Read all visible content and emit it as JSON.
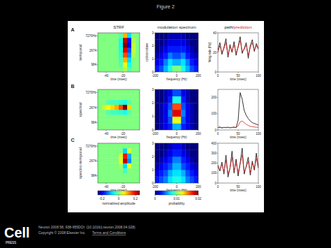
{
  "page": {
    "title": "Figure 2",
    "column_titles": [
      "STRF",
      "modulation spectrum"
    ],
    "legend_separator": "/",
    "rows": [
      {
        "letter": "A",
        "label": "temporal"
      },
      {
        "letter": "B",
        "label": "spectral"
      },
      {
        "letter": "C",
        "label": "spectro-temporal"
      }
    ],
    "logo": "Cell",
    "logo_sub": "PRESS",
    "citation": "Neuron 2008 58, 938-955DOI: (10.1016/j.neuron.2008.04.028)",
    "copyright": "Copyright © 2008 Elsevier Inc.",
    "link": "Terms and Conditions"
  },
  "chart_data": [
    {
      "type": "heatmap",
      "log": "y",
      "xlabel": "time (msec)",
      "x": [
        -47.5,
        -42.5,
        -37.5,
        -32.5,
        -27.5,
        -22.5,
        -17.5,
        -12.5,
        -7.5,
        -2.5
      ],
      "y": [
        711,
        997,
        1399,
        1963,
        2754,
        3864,
        5421,
        7606
      ],
      "xlim": [
        -50,
        0
      ],
      "ylim": [
        600,
        9000
      ],
      "xticks": [
        -40,
        -20
      ],
      "yticks": [
        984,
        2674,
        {
          "value": 7270,
          "label": "7270Hz"
        }
      ],
      "zlim": [
        -0.25,
        0.25
      ],
      "cells": [
        [
          0,
          0,
          0,
          0,
          0,
          0,
          0.02,
          -0.02,
          0,
          0
        ],
        [
          0,
          0,
          0,
          0,
          0,
          -0.02,
          0.05,
          -0.05,
          0,
          0
        ],
        [
          0,
          0,
          0,
          0,
          0,
          -0.03,
          0.1,
          -0.08,
          0,
          0
        ],
        [
          0,
          0,
          0,
          0,
          0,
          -0.04,
          0.15,
          -0.12,
          0.02,
          0
        ],
        [
          0,
          0,
          0,
          0,
          0,
          -0.05,
          0.2,
          -0.15,
          0.03,
          0
        ],
        [
          0,
          0,
          0,
          0,
          0,
          -0.06,
          0.25,
          -0.2,
          0.03,
          0
        ],
        [
          0,
          0,
          0,
          0,
          0,
          -0.05,
          0.22,
          -0.18,
          0.02,
          0
        ],
        [
          0,
          0,
          0,
          0,
          0,
          -0.02,
          0.1,
          -0.08,
          0,
          0
        ]
      ]
    },
    {
      "type": "heatmap",
      "xlabel": "frequency (Hz)",
      "ylabel": "cycles/octave",
      "x": [
        -180,
        -140,
        -100,
        -60,
        -20,
        20,
        60,
        100,
        140,
        180
      ],
      "y": [
        0.25,
        0.75,
        1.25,
        1.75,
        2.25,
        2.75
      ],
      "xlim": [
        -200,
        200
      ],
      "ylim": [
        0,
        3
      ],
      "xticks": [
        -200,
        0,
        200
      ],
      "yticks": [
        0,
        1,
        2,
        3
      ],
      "zlim": [
        0,
        0.02
      ],
      "cells": [
        [
          0.003,
          0.004,
          0.006,
          0.008,
          0.01,
          0.01,
          0.008,
          0.006,
          0.004,
          0.003
        ],
        [
          0.002,
          0.003,
          0.005,
          0.007,
          0.006,
          0.006,
          0.007,
          0.005,
          0.003,
          0.002
        ],
        [
          0.001,
          0.002,
          0.003,
          0.005,
          0.004,
          0.004,
          0.005,
          0.003,
          0.002,
          0.001
        ],
        [
          0,
          0.001,
          0.002,
          0.003,
          0.003,
          0.003,
          0.003,
          0.002,
          0.001,
          0
        ],
        [
          0,
          0,
          0.001,
          0.002,
          0.002,
          0.002,
          0.002,
          0.001,
          0,
          0
        ],
        [
          0,
          0,
          0,
          0.001,
          0.001,
          0.001,
          0.001,
          0,
          0,
          0
        ]
      ]
    },
    {
      "type": "line",
      "xlabel": "time (msec)",
      "ylabel": "firing rate (Hz)",
      "x": [
        0,
        5,
        10,
        15,
        20,
        25,
        30,
        35,
        40,
        45,
        50,
        55,
        60,
        65,
        70,
        75,
        80,
        85,
        90,
        95,
        100
      ],
      "xlim": [
        0,
        100
      ],
      "ylim": [
        0,
        40
      ],
      "xticks": [
        0,
        50,
        100
      ],
      "yticks": [
        0,
        20,
        40
      ],
      "series": [
        {
          "name": "psth",
          "color": "#000000",
          "values": [
            22,
            30,
            18,
            25,
            34,
            15,
            28,
            20,
            31,
            17,
            26,
            36,
            19,
            24,
            30,
            14,
            27,
            33,
            21,
            29,
            24
          ]
        },
        {
          "name": "prediction",
          "color": "#d42020",
          "values": [
            20,
            27,
            20,
            24,
            30,
            17,
            26,
            21,
            28,
            19,
            25,
            32,
            21,
            23,
            28,
            17,
            25,
            30,
            22,
            27,
            23
          ]
        }
      ]
    },
    {
      "type": "heatmap",
      "log": "y",
      "xlabel": "time (msec)",
      "x": [
        -47.5,
        -42.5,
        -37.5,
        -32.5,
        -27.5,
        -22.5,
        -17.5,
        -12.5,
        -7.5,
        -2.5
      ],
      "y": [
        711,
        997,
        1399,
        1963,
        2754,
        3864,
        5421,
        7606
      ],
      "xlim": [
        -50,
        0
      ],
      "ylim": [
        600,
        9000
      ],
      "xticks": [
        -40,
        -20
      ],
      "yticks": [
        984,
        2674,
        {
          "value": 7270,
          "label": "7270Hz"
        }
      ],
      "zlim": [
        -0.25,
        0.25
      ],
      "cells": [
        [
          0,
          0,
          0,
          0,
          0,
          0,
          0,
          0,
          0,
          0
        ],
        [
          0,
          0,
          0,
          0,
          0,
          0,
          0,
          0,
          0,
          0
        ],
        [
          0,
          0,
          0,
          0,
          0,
          0,
          0,
          0,
          0,
          0
        ],
        [
          0,
          0,
          -0.02,
          -0.03,
          -0.03,
          -0.04,
          -0.05,
          -0.02,
          0,
          0
        ],
        [
          0,
          0.03,
          0.06,
          0.08,
          0.1,
          0.15,
          0.25,
          0.08,
          0,
          0
        ],
        [
          0,
          0,
          -0.02,
          -0.03,
          -0.03,
          -0.04,
          -0.05,
          -0.02,
          0,
          0
        ],
        [
          0,
          0,
          0,
          0,
          0,
          0,
          0,
          0,
          0,
          0
        ],
        [
          0,
          0,
          0,
          0,
          0,
          0,
          0,
          0,
          0,
          0
        ]
      ]
    },
    {
      "type": "heatmap",
      "xlabel": "frequency (Hz)",
      "x": [
        -180,
        -140,
        -100,
        -60,
        -20,
        20,
        60,
        100,
        140,
        180
      ],
      "y": [
        0.25,
        0.75,
        1.25,
        1.75,
        2.25,
        2.75
      ],
      "xlim": [
        -200,
        200
      ],
      "ylim": [
        0,
        3
      ],
      "xticks": [
        -200,
        0,
        200
      ],
      "yticks": [
        0,
        1,
        2,
        3
      ],
      "zlim": [
        0,
        0.02
      ],
      "cells": [
        [
          0,
          0.001,
          0.002,
          0.003,
          0.006,
          0.006,
          0.003,
          0.002,
          0.001,
          0
        ],
        [
          0,
          0.001,
          0.002,
          0.004,
          0.012,
          0.012,
          0.004,
          0.002,
          0.001,
          0
        ],
        [
          0,
          0.001,
          0.002,
          0.005,
          0.018,
          0.018,
          0.005,
          0.002,
          0.001,
          0
        ],
        [
          0,
          0.001,
          0.002,
          0.004,
          0.016,
          0.016,
          0.004,
          0.002,
          0.001,
          0
        ],
        [
          0,
          0,
          0.001,
          0.003,
          0.008,
          0.008,
          0.003,
          0.001,
          0,
          0
        ],
        [
          0,
          0,
          0.001,
          0.002,
          0.004,
          0.004,
          0.002,
          0.001,
          0,
          0
        ]
      ]
    },
    {
      "type": "line",
      "xlabel": "time (msec)",
      "x": [
        0,
        5,
        10,
        15,
        20,
        25,
        30,
        35,
        40,
        45,
        50,
        55,
        60,
        65,
        70,
        75,
        80,
        85,
        90,
        95,
        100
      ],
      "xlim": [
        0,
        100
      ],
      "ylim": [
        0,
        250
      ],
      "xticks": [
        0,
        50,
        100
      ],
      "yticks": [
        0,
        100,
        200
      ],
      "series": [
        {
          "name": "psth",
          "color": "#000000",
          "values": [
            15,
            18,
            12,
            16,
            14,
            17,
            13,
            15,
            18,
            14,
            60,
            230,
            190,
            120,
            90,
            70,
            55,
            45,
            40,
            35,
            30
          ]
        },
        {
          "name": "prediction",
          "color": "#d42020",
          "values": [
            15,
            16,
            15,
            15,
            16,
            15,
            15,
            16,
            15,
            16,
            25,
            50,
            55,
            45,
            35,
            28,
            22,
            20,
            18,
            17,
            16
          ]
        }
      ]
    },
    {
      "type": "heatmap",
      "log": "y",
      "xlabel": "time (msec)",
      "x": [
        -47.5,
        -42.5,
        -37.5,
        -32.5,
        -27.5,
        -22.5,
        -17.5,
        -12.5,
        -7.5,
        -2.5
      ],
      "y": [
        711,
        997,
        1399,
        1963,
        2754,
        3864,
        5421,
        7606
      ],
      "xlim": [
        -50,
        0
      ],
      "ylim": [
        600,
        9000
      ],
      "xticks": [
        -40,
        -20
      ],
      "yticks": [
        984,
        2674,
        {
          "value": 7270,
          "label": "7270Hz"
        }
      ],
      "zlim": [
        -0.25,
        0.25
      ],
      "cells": [
        [
          0,
          0,
          0,
          0,
          0,
          0,
          0,
          0,
          0,
          0
        ],
        [
          0,
          0,
          0,
          0,
          0,
          0,
          0,
          0,
          0,
          0
        ],
        [
          0,
          0,
          0,
          0,
          0,
          0,
          -0.03,
          0,
          0,
          0
        ],
        [
          0,
          0,
          0,
          0,
          0,
          0.02,
          -0.08,
          0.05,
          0,
          0
        ],
        [
          0,
          0,
          0,
          0,
          0,
          0.05,
          0.22,
          -0.12,
          0,
          0
        ],
        [
          0,
          0,
          0,
          0,
          0,
          0.04,
          0.18,
          -0.1,
          0,
          0
        ],
        [
          0,
          0,
          0,
          0,
          0,
          0,
          -0.08,
          0.04,
          0,
          0
        ],
        [
          0,
          0,
          0,
          0,
          0,
          0,
          0,
          0,
          0,
          0
        ]
      ]
    },
    {
      "type": "heatmap",
      "xlabel": "frequency (Hz)",
      "x": [
        -180,
        -140,
        -100,
        -60,
        -20,
        20,
        60,
        100,
        140,
        180
      ],
      "y": [
        0.25,
        0.75,
        1.25,
        1.75,
        2.25,
        2.75
      ],
      "xlim": [
        -200,
        200
      ],
      "ylim": [
        0,
        3
      ],
      "xticks": [
        -200,
        0,
        200
      ],
      "yticks": [
        0,
        1,
        2,
        3
      ],
      "zlim": [
        0,
        0.02
      ],
      "cells": [
        [
          0.003,
          0.004,
          0.005,
          0.007,
          0.008,
          0.008,
          0.007,
          0.005,
          0.004,
          0.003
        ],
        [
          0.002,
          0.003,
          0.004,
          0.006,
          0.007,
          0.007,
          0.006,
          0.004,
          0.003,
          0.002
        ],
        [
          0.001,
          0.002,
          0.003,
          0.004,
          0.006,
          0.006,
          0.004,
          0.003,
          0.002,
          0.001
        ],
        [
          0,
          0.001,
          0.002,
          0.003,
          0.005,
          0.005,
          0.003,
          0.002,
          0.001,
          0
        ],
        [
          0,
          0,
          0.001,
          0.002,
          0.003,
          0.003,
          0.002,
          0.001,
          0,
          0
        ],
        [
          0,
          0,
          0,
          0.001,
          0.002,
          0.002,
          0.001,
          0,
          0,
          0
        ]
      ]
    },
    {
      "type": "line",
      "xlabel": "time (msec)",
      "x": [
        0,
        5,
        10,
        15,
        20,
        25,
        30,
        35,
        40,
        45,
        50,
        55,
        60,
        65,
        70,
        75,
        80,
        85,
        90,
        95,
        100
      ],
      "xlim": [
        0,
        100
      ],
      "ylim": [
        0,
        400
      ],
      "xticks": [
        0,
        50,
        100
      ],
      "yticks": [
        0,
        100,
        200,
        300,
        400
      ],
      "series": [
        {
          "name": "psth",
          "color": "#000000",
          "values": [
            180,
            120,
            210,
            90,
            280,
            60,
            150,
            320,
            100,
            240,
            70,
            200,
            350,
            90,
            170,
            260,
            80,
            220,
            130,
            300,
            150
          ]
        },
        {
          "name": "prediction",
          "color": "#d42020",
          "values": [
            160,
            130,
            190,
            110,
            230,
            90,
            150,
            260,
            120,
            210,
            100,
            190,
            280,
            110,
            160,
            220,
            100,
            200,
            140,
            250,
            150
          ]
        }
      ]
    },
    {
      "type": "colorbar",
      "label": "normalized amplitude",
      "zlim": [
        -0.25,
        0.25
      ],
      "zticks": [
        -0.2,
        0,
        0.2
      ]
    },
    {
      "type": "colorbar",
      "label": "probability",
      "zlim": [
        0,
        0.02
      ],
      "zticks": [
        0,
        0.01,
        0.02
      ]
    }
  ]
}
